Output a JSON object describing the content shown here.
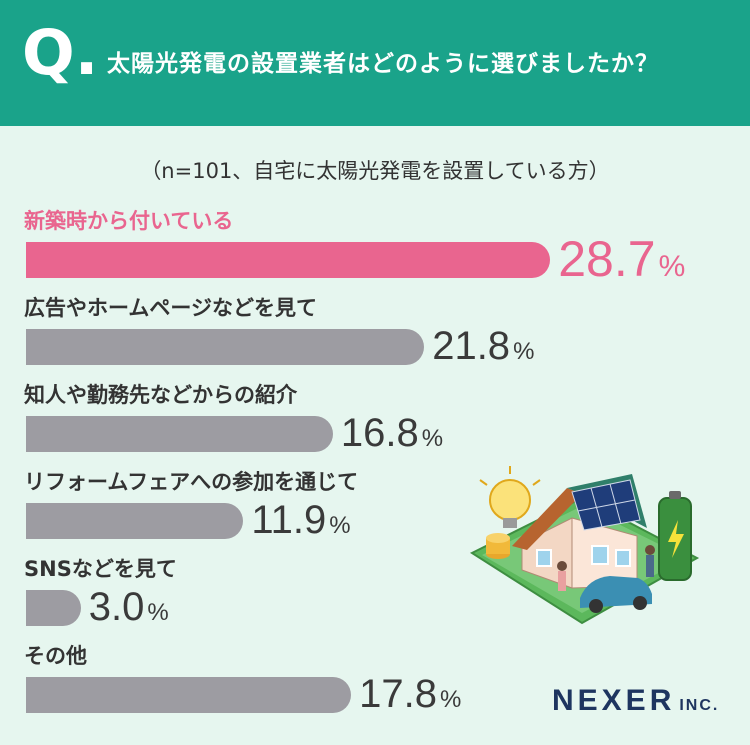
{
  "header": {
    "q_mark": "Q.",
    "question": "太陽光発電の設置業者はどのように選びましたか？"
  },
  "subtitle": "（n=101、自宅に太陽光発電を設置している方）",
  "logo": {
    "main": "NEXER",
    "suffix": "INC."
  },
  "colors": {
    "highlight": "#e9658f",
    "bar": "#9d9ca2",
    "header": "#1aa38a",
    "background": "#e6f6ef"
  },
  "illustration": "house-with-solar-panels-battery-and-car",
  "chart_data": {
    "type": "bar",
    "orientation": "horizontal",
    "unit": "%",
    "categories": [
      "新築時から付いている",
      "広告やホームページなどを見て",
      "知人や勤務先などからの紹介",
      "リフォームフェアへの参加を通じて",
      "SNSなどを見て",
      "その他"
    ],
    "values": [
      28.7,
      21.8,
      16.8,
      11.9,
      3.0,
      17.8
    ],
    "value_labels": [
      "28.7",
      "21.8",
      "16.8",
      "11.9",
      "3.0",
      "17.8"
    ],
    "highlight_index": 0,
    "xlim": [
      0,
      30
    ]
  }
}
